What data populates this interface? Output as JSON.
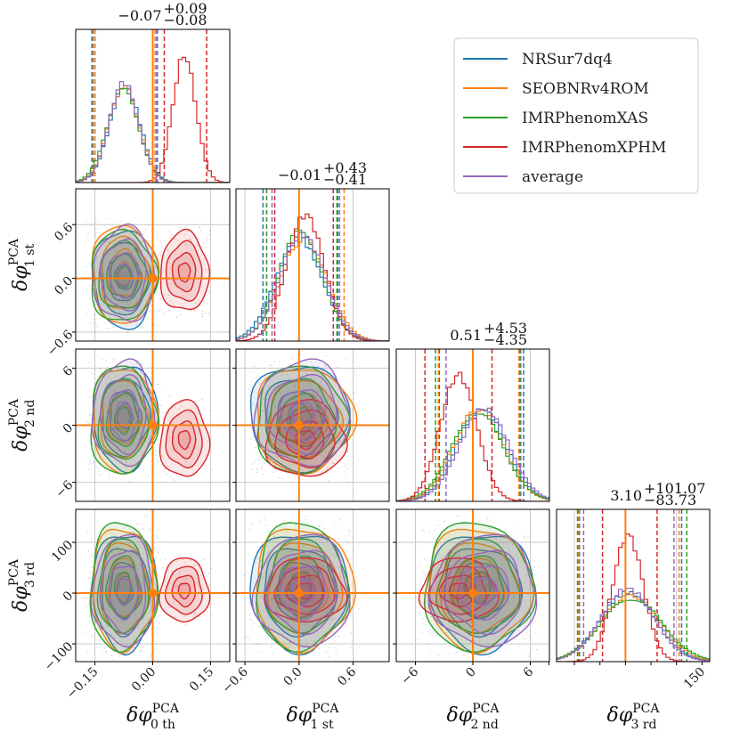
{
  "chart_data": {
    "type": "corner",
    "parameters": [
      {
        "key": "p0",
        "label_base": "δφ",
        "label_sup": "PCA",
        "label_sub": "0 th",
        "range": [
          -0.2,
          0.2
        ],
        "ticks": [
          -0.15,
          0.0,
          0.15
        ],
        "tick_labels": [
          "−0.15",
          "0.00",
          "0.15"
        ],
        "title": {
          "median": "−0.07",
          "plus": "+0.09",
          "minus": "−0.08"
        },
        "truth": 0.0
      },
      {
        "key": "p1",
        "label_base": "δφ",
        "label_sup": "PCA",
        "label_sub": "1 st",
        "range": [
          -0.7,
          1.0
        ],
        "ticks": [
          -0.6,
          0.0,
          0.6
        ],
        "tick_labels": [
          "−0.6",
          "0.0",
          "0.6"
        ],
        "title": {
          "median": "−0.01",
          "plus": "+0.43",
          "minus": "−0.41"
        },
        "truth": 0.0
      },
      {
        "key": "p2",
        "label_base": "δφ",
        "label_sup": "PCA",
        "label_sub": "2 nd",
        "range": [
          -8,
          8
        ],
        "ticks": [
          -6,
          0,
          6
        ],
        "tick_labels": [
          "−6",
          "0",
          "6"
        ],
        "title": {
          "median": "0.51",
          "plus": "+4.53",
          "minus": "−4.35"
        },
        "truth": 0.0
      },
      {
        "key": "p3",
        "label_base": "δφ",
        "label_sup": "PCA",
        "label_sub": "3 rd",
        "range": [
          -135,
          165
        ],
        "ticks": [
          -100,
          0,
          100
        ],
        "tick_labels": [
          "−100",
          "0",
          "100"
        ],
        "bottom_ticks": [
          -150,
          -100,
          -50,
          0,
          50,
          100,
          150
        ],
        "bottom_tick_labels": [
          "",
          "",
          "",
          "",
          "",
          "",
          "150"
        ],
        "title": {
          "median": "3.10",
          "plus": "+101.07",
          "minus": "−83.73"
        },
        "truth": 0.0
      }
    ],
    "series": [
      {
        "name": "NRSur7dq4",
        "color": "#1f77b4",
        "mean": [
          -0.072,
          0.0,
          0.9,
          5.0
        ],
        "sd": [
          0.04,
          0.26,
          2.6,
          55.0
        ],
        "q05": [
          -0.15,
          -0.4,
          -3.5,
          -90
        ],
        "q95": [
          0.012,
          0.43,
          5.3,
          110
        ]
      },
      {
        "name": "SEOBNRv4ROM",
        "color": "#ff7f0e",
        "mean": [
          -0.075,
          0.05,
          0.6,
          10.0
        ],
        "sd": [
          0.04,
          0.26,
          2.6,
          57.0
        ],
        "q05": [
          -0.15,
          -0.36,
          -3.6,
          -92
        ],
        "q95": [
          0.006,
          0.5,
          4.8,
          105
        ]
      },
      {
        "name": "IMRPhenomXAS",
        "color": "#2ca02c",
        "mean": [
          -0.078,
          0.02,
          0.5,
          12.0
        ],
        "sd": [
          0.041,
          0.24,
          2.7,
          60.0
        ],
        "q05": [
          -0.158,
          -0.36,
          -3.9,
          -94
        ],
        "q95": [
          0.0,
          0.42,
          5.0,
          120
        ]
      },
      {
        "name": "IMRPhenomXPHM",
        "color": "#d62728",
        "mean": [
          0.082,
          0.07,
          -1.5,
          5.0
        ],
        "sd": [
          0.03,
          0.21,
          1.9,
          30.0
        ],
        "q05": [
          0.03,
          -0.27,
          -5.0,
          -45
        ],
        "q95": [
          0.14,
          0.38,
          2.0,
          62
        ]
      },
      {
        "name": "average",
        "color": "#9467bd",
        "mean": [
          -0.075,
          0.04,
          1.2,
          4.0
        ],
        "sd": [
          0.038,
          0.25,
          2.6,
          52.0
        ],
        "q05": [
          -0.155,
          -0.3,
          -2.8,
          -82
        ],
        "q95": [
          0.01,
          0.45,
          4.9,
          95
        ]
      }
    ],
    "legend": [
      "NRSur7dq4",
      "SEOBNRv4ROM",
      "IMRPhenomXAS",
      "IMRPhenomXPHM",
      "average"
    ],
    "legend_position": "top-right",
    "truth_color": "#ff7f0e",
    "grid": true
  }
}
